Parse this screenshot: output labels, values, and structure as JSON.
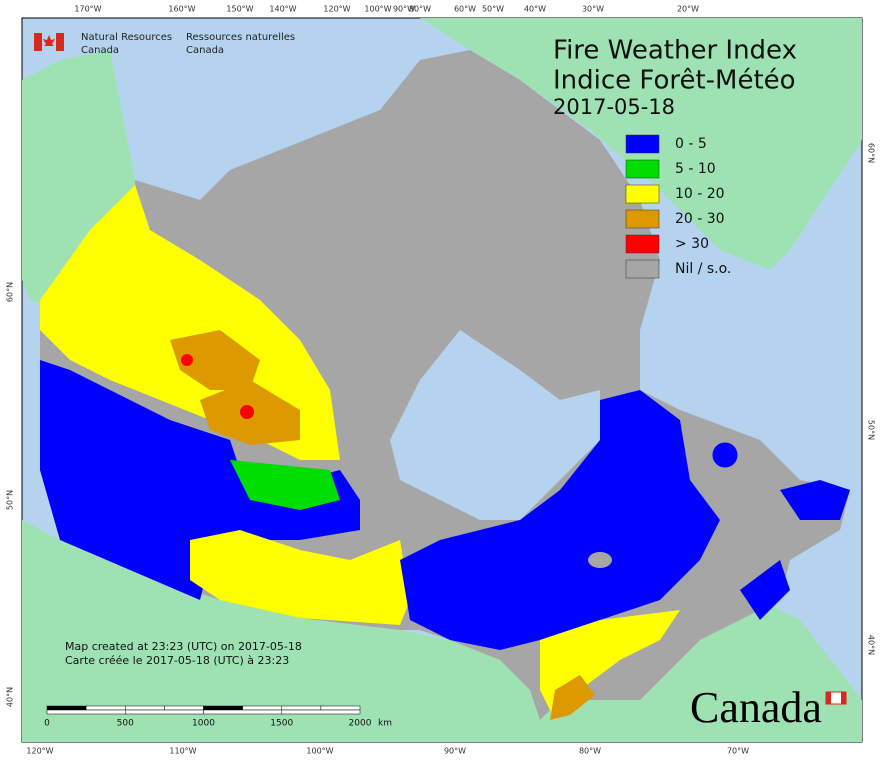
{
  "header": {
    "agency_en": [
      "Natural Resources",
      "Canada"
    ],
    "agency_fr": [
      "Ressources naturelles",
      "Canada"
    ]
  },
  "title": {
    "en": "Fire Weather Index",
    "fr": "Indice Forêt-Météo",
    "date": "2017-05-18"
  },
  "legend": [
    {
      "label": "0 - 5",
      "color": "#0000ff"
    },
    {
      "label": "5 - 10",
      "color": "#00dd00"
    },
    {
      "label": "10 - 20",
      "color": "#ffff00"
    },
    {
      "label": "20 - 30",
      "color": "#dd9900"
    },
    {
      "label": "> 30",
      "color": "#ff0000"
    },
    {
      "label": "Nil / s.o.",
      "color": "#a6a6a6"
    }
  ],
  "graticule": {
    "top": [
      "170°W",
      "160°W",
      "150°W",
      "140°W",
      "120°W",
      "100°W",
      "90°W",
      "80°W",
      "60°W",
      "50°W",
      "40°W",
      "30°W",
      "20°W"
    ],
    "bottom": [
      "120°W",
      "110°W",
      "100°W",
      "90°W",
      "80°W",
      "70°W"
    ],
    "left": [
      "60°N",
      "50°N",
      "40°N"
    ],
    "right": [
      "60°N",
      "50°N",
      "40°N"
    ]
  },
  "footer": {
    "created_en": "Map created at 23:23 (UTC) on 2017-05-18",
    "created_fr": "Carte créée le 2017-05-18 (UTC) à 23:23"
  },
  "scale_bar": {
    "labels": [
      "0",
      "500",
      "1000",
      "1500",
      "2000"
    ],
    "unit": "km"
  },
  "wordmark": "Canada"
}
